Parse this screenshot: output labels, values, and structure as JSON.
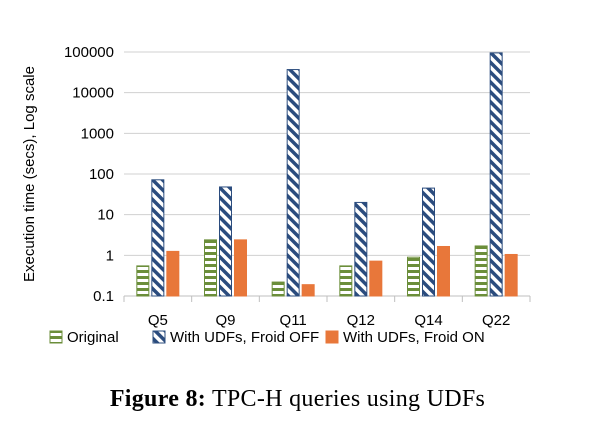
{
  "chart_data": {
    "type": "bar",
    "yscale": "log",
    "ylim": [
      0.1,
      100000
    ],
    "yticks": [
      "0.1",
      "1",
      "10",
      "100",
      "1000",
      "10000",
      "100000"
    ],
    "ytick_values": [
      0.1,
      1,
      10,
      100,
      1000,
      10000,
      100000
    ],
    "ylabel": "Execution time (secs), Log scale",
    "xlabel": "",
    "grid": true,
    "legend_position": "bottom",
    "categories": [
      "Q5",
      "Q9",
      "Q11",
      "Q12",
      "Q14",
      "Q22"
    ],
    "series": [
      {
        "name": "Original",
        "values": [
          0.55,
          2.4,
          0.22,
          0.55,
          0.9,
          1.7
        ],
        "color": "#6b8e3a",
        "pattern": "horizontal-stripes"
      },
      {
        "name": "With UDFs, Froid OFF",
        "values": [
          72,
          48,
          37000,
          20,
          45,
          95000
        ],
        "color": "#2b4c7e",
        "pattern": "diagonal-stripes"
      },
      {
        "name": "With UDFs, Froid ON",
        "values": [
          1.25,
          2.4,
          0.19,
          0.72,
          1.65,
          1.05
        ],
        "color": "#e8773a",
        "pattern": "solid"
      }
    ]
  },
  "caption": {
    "label": "Figure 8:",
    "text": "TPC-H queries using UDFs"
  }
}
